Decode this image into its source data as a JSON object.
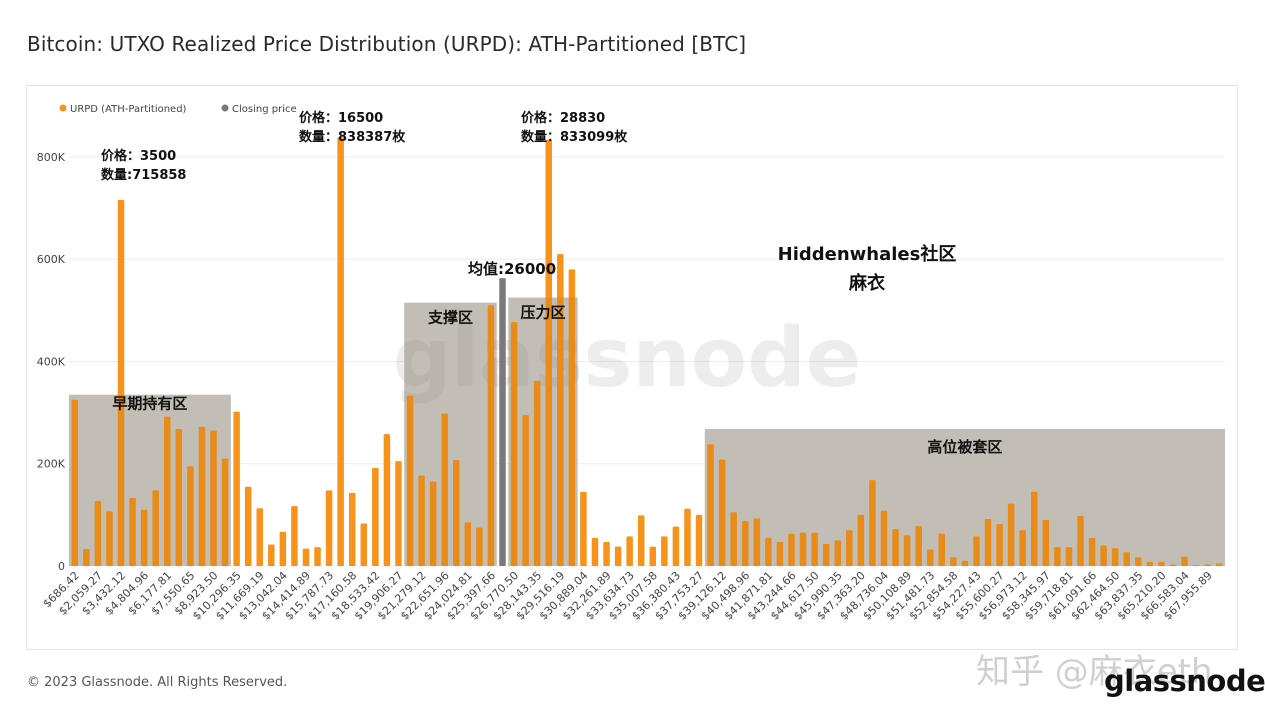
{
  "page": {
    "title": "Bitcoin: UTXO Realized Price Distribution (URPD): ATH-Partitioned [BTC]",
    "copyright": "© 2023 Glassnode. All Rights Reserved.",
    "brand": "glassnode",
    "watermark_zhihu": "知乎 @麻衣eth"
  },
  "chart_data": {
    "type": "bar",
    "title": "Bitcoin: UTXO Realized Price Distribution (URPD): ATH-Partitioned [BTC]",
    "xlabel": "",
    "ylabel": "",
    "ylim": [
      0,
      880000
    ],
    "yticks": [
      0,
      200000,
      400000,
      600000,
      800000
    ],
    "ytick_labels": [
      "0",
      "200K",
      "400K",
      "600K",
      "800K"
    ],
    "grid": true,
    "legend_position": "top-left",
    "colors": {
      "urpd": "#f7931a",
      "closing": "#7a7a7a",
      "zone": "#cccccc"
    },
    "series": [
      {
        "name": "URPD (ATH-Partitioned)",
        "color": "#f7931a"
      },
      {
        "name": "Closing price",
        "color": "#7a7a7a"
      }
    ],
    "x_tick_labels": [
      "$686.42",
      "$2,059.27",
      "$3,432.12",
      "$4,804.96",
      "$6,177.81",
      "$7,550.65",
      "$8,923.50",
      "$10,296.35",
      "$11,669.19",
      "$13,042.04",
      "$14,414.89",
      "$15,787.73",
      "$17,160.58",
      "$18,533.42",
      "$19,906.27",
      "$21,279.12",
      "$22,651.96",
      "$24,024.81",
      "$25,397.66",
      "$26,770.50",
      "$28,143.35",
      "$29,516.19",
      "$30,889.04",
      "$32,261.89",
      "$33,634.73",
      "$35,007.58",
      "$36,380.43",
      "$37,753.27",
      "$39,126.12",
      "$40,498.96",
      "$41,871.81",
      "$43,244.66",
      "$44,617.50",
      "$45,990.35",
      "$47,363.20",
      "$48,736.04",
      "$50,108.89",
      "$51,481.73",
      "$52,854.58",
      "$54,227.43",
      "$55,600.27",
      "$56,973.12",
      "$58,345.97",
      "$59,718.81",
      "$61,091.66",
      "$62,464.50",
      "$63,837.35",
      "$65,210.20",
      "$66,583.04",
      "$67,955.89"
    ],
    "values": [
      325000,
      33000,
      127000,
      107000,
      715858,
      133000,
      110000,
      148000,
      292000,
      268000,
      195000,
      272000,
      265000,
      210000,
      302000,
      155000,
      113000,
      42000,
      67000,
      117000,
      34000,
      37000,
      148000,
      838387,
      143000,
      83000,
      192000,
      258000,
      205000,
      333000,
      177000,
      165000,
      298000,
      207000,
      85000,
      75000,
      510000,
      0,
      477000,
      295000,
      362000,
      833099,
      610000,
      580000,
      145000,
      55000,
      47000,
      38000,
      58000,
      99000,
      38000,
      58000,
      77000,
      112000,
      100000,
      238000,
      208000,
      105000,
      88000,
      93000,
      55000,
      47000,
      63000,
      65000,
      65000,
      43000,
      50000,
      70000,
      100000,
      168000,
      108000,
      72000,
      60000,
      78000,
      32000,
      63000,
      17000,
      10000,
      58000,
      92000,
      82000,
      122000,
      70000,
      145000,
      90000,
      37000,
      37000,
      98000,
      55000,
      40000,
      35000,
      27000,
      17000,
      8000,
      8000,
      3000,
      18000,
      2000,
      3000,
      5000
    ],
    "closing_price": {
      "value": 563000,
      "index": 37
    },
    "annotations": [
      {
        "id": "peak1",
        "lines": [
          "价格：3500",
          "数量:715858"
        ]
      },
      {
        "id": "peak2",
        "lines": [
          "价格：16500",
          "数量：838387枚"
        ]
      },
      {
        "id": "peak3",
        "lines": [
          "价格：28830",
          "数量：833099枚"
        ]
      },
      {
        "id": "mean",
        "text": "均值:26000"
      },
      {
        "id": "community",
        "lines": [
          "Hiddenwhales社区",
          "麻衣"
        ]
      }
    ],
    "zones": [
      {
        "label": "早期持有区",
        "from": 0,
        "to": 13,
        "top": 335000
      },
      {
        "label": "支撑区",
        "from": 29,
        "to": 36,
        "top": 515000
      },
      {
        "label": "压力区",
        "from": 38,
        "to": 43,
        "top": 525000
      },
      {
        "label": "高位被套区",
        "from": 55,
        "to": 99,
        "top": 268000
      }
    ],
    "watermark": "glassnode"
  }
}
